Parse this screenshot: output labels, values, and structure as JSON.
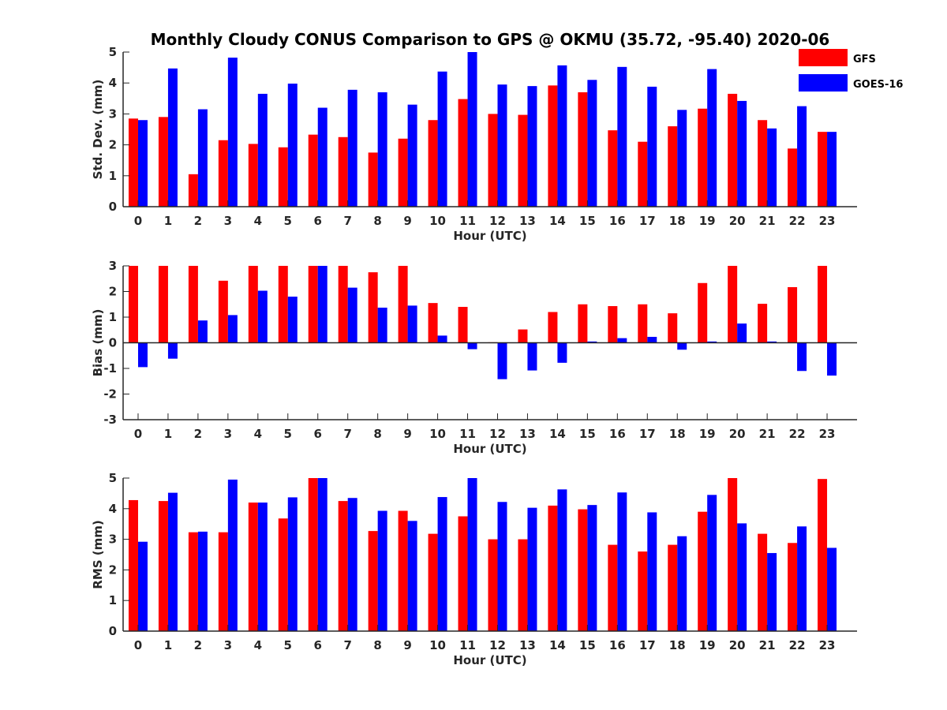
{
  "figure": {
    "title": "Monthly Cloudy CONUS Comparison to GPS @ OKMU (35.72, -95.40) 2020-06"
  },
  "legend": {
    "placement": "top-right",
    "entries": [
      {
        "label": "GFS",
        "color": "#ff0000"
      },
      {
        "label": "GOES-16",
        "color": "#0000ff"
      }
    ]
  },
  "chart_data": [
    {
      "type": "bar",
      "xlabel": "Hour (UTC)",
      "ylabel": "Std. Dev. (mm)",
      "ylim": [
        0,
        5
      ],
      "yticks": [
        0,
        1,
        2,
        3,
        4,
        5
      ],
      "categories": [
        "0",
        "1",
        "2",
        "3",
        "4",
        "5",
        "6",
        "7",
        "8",
        "9",
        "10",
        "11",
        "12",
        "13",
        "14",
        "15",
        "16",
        "17",
        "18",
        "19",
        "20",
        "21",
        "22",
        "23"
      ],
      "series": [
        {
          "name": "GFS",
          "color": "#ff0000",
          "values": [
            2.85,
            2.9,
            1.05,
            2.15,
            2.03,
            1.92,
            2.33,
            2.25,
            1.75,
            2.2,
            2.8,
            3.48,
            3.0,
            2.97,
            3.92,
            3.7,
            2.47,
            2.1,
            2.6,
            3.17,
            3.65,
            2.8,
            1.88,
            2.42
          ]
        },
        {
          "name": "GOES-16",
          "color": "#0000ff",
          "values": [
            2.8,
            4.47,
            3.15,
            4.82,
            3.65,
            3.98,
            3.2,
            3.78,
            3.7,
            3.3,
            4.37,
            5.0,
            3.95,
            3.9,
            4.57,
            4.1,
            4.52,
            3.88,
            3.13,
            4.45,
            3.42,
            2.53,
            3.25,
            2.42
          ]
        }
      ]
    },
    {
      "type": "bar",
      "xlabel": "Hour (UTC)",
      "ylabel": "Bias (mm)",
      "ylim": [
        -3,
        3
      ],
      "yticks": [
        -3,
        -2,
        -1,
        0,
        1,
        2,
        3
      ],
      "categories": [
        "0",
        "1",
        "2",
        "3",
        "4",
        "5",
        "6",
        "7",
        "8",
        "9",
        "10",
        "11",
        "12",
        "13",
        "14",
        "15",
        "16",
        "17",
        "18",
        "19",
        "20",
        "21",
        "22",
        "23"
      ],
      "series": [
        {
          "name": "GFS",
          "color": "#ff0000",
          "values": [
            3.0,
            3.0,
            3.0,
            2.42,
            3.0,
            3.0,
            3.0,
            3.0,
            2.75,
            3.0,
            1.55,
            1.4,
            0.02,
            0.52,
            1.2,
            1.5,
            1.43,
            1.5,
            1.15,
            2.33,
            3.0,
            1.52,
            2.17,
            3.0
          ]
        },
        {
          "name": "GOES-16",
          "color": "#0000ff",
          "values": [
            -0.95,
            -0.62,
            0.87,
            1.08,
            2.03,
            1.8,
            3.0,
            2.15,
            1.37,
            1.45,
            0.28,
            -0.25,
            -1.42,
            -1.08,
            -0.78,
            0.05,
            0.18,
            0.23,
            -0.27,
            0.05,
            0.75,
            0.05,
            -1.1,
            -1.28
          ]
        }
      ]
    },
    {
      "type": "bar",
      "xlabel": "Hour (UTC)",
      "ylabel": "RMS (mm)",
      "ylim": [
        0,
        5
      ],
      "yticks": [
        0,
        1,
        2,
        3,
        4,
        5
      ],
      "categories": [
        "0",
        "1",
        "2",
        "3",
        "4",
        "5",
        "6",
        "7",
        "8",
        "9",
        "10",
        "11",
        "12",
        "13",
        "14",
        "15",
        "16",
        "17",
        "18",
        "19",
        "20",
        "21",
        "22",
        "23"
      ],
      "series": [
        {
          "name": "GFS",
          "color": "#ff0000",
          "values": [
            4.28,
            4.25,
            3.23,
            3.23,
            4.2,
            3.68,
            5.0,
            4.25,
            3.27,
            3.93,
            3.18,
            3.75,
            3.0,
            3.0,
            4.1,
            3.98,
            2.82,
            2.6,
            2.82,
            3.9,
            5.0,
            3.18,
            2.88,
            4.97
          ]
        },
        {
          "name": "GOES-16",
          "color": "#0000ff",
          "values": [
            2.92,
            4.52,
            3.25,
            4.95,
            4.2,
            4.37,
            5.0,
            4.35,
            3.93,
            3.6,
            4.38,
            5.0,
            4.22,
            4.03,
            4.63,
            4.12,
            4.53,
            3.88,
            3.1,
            4.45,
            3.52,
            2.55,
            3.42,
            2.72
          ]
        }
      ]
    }
  ]
}
